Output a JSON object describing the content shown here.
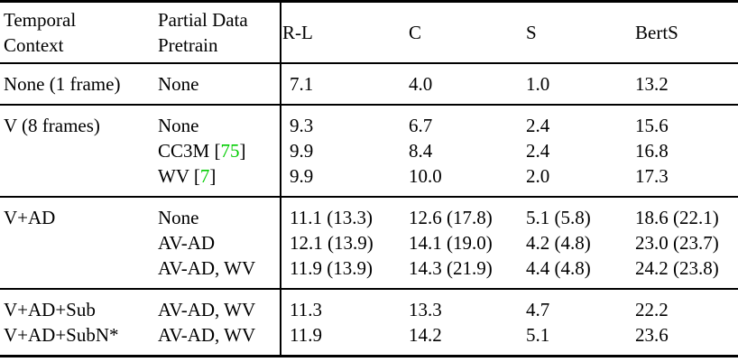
{
  "page": {
    "background": "#ffffff",
    "text_color": "#000000",
    "citation_color": "#00cc00"
  },
  "table": {
    "header": [
      {
        "lines": [
          "Temporal",
          "Context"
        ]
      },
      {
        "lines": [
          "Partial Data",
          "Pretrain"
        ]
      },
      {
        "lines": [
          "R-L"
        ]
      },
      {
        "lines": [
          "C"
        ]
      },
      {
        "lines": [
          "S"
        ]
      },
      {
        "lines": [
          "BertS"
        ]
      }
    ],
    "groups": [
      {
        "rows": [
          {
            "context": "None (1 frame)",
            "pretrain": {
              "text": "None",
              "cite": null
            },
            "values": [
              "7.1",
              "4.0",
              "1.0",
              "13.2"
            ]
          }
        ]
      },
      {
        "rows": [
          {
            "context": "V (8 frames)",
            "pretrain": {
              "text": "None",
              "cite": null
            },
            "values": [
              "9.3",
              "6.7",
              "2.4",
              "15.6"
            ]
          },
          {
            "context": "",
            "pretrain": {
              "text": "CC3M",
              "cite": "75"
            },
            "values": [
              "9.9",
              "8.4",
              "2.4",
              "16.8"
            ]
          },
          {
            "context": "",
            "pretrain": {
              "text": "WV",
              "cite": "7"
            },
            "values": [
              "9.9",
              "10.0",
              "2.0",
              "17.3"
            ]
          }
        ]
      },
      {
        "rows": [
          {
            "context": "V+AD",
            "pretrain": {
              "text": "None",
              "cite": null
            },
            "values": [
              "11.1 (13.3)",
              "12.6 (17.8)",
              "5.1 (5.8)",
              "18.6 (22.1)"
            ]
          },
          {
            "context": "",
            "pretrain": {
              "text": "AV-AD",
              "cite": null
            },
            "values": [
              "12.1 (13.9)",
              "14.1 (19.0)",
              "4.2 (4.8)",
              "23.0 (23.7)"
            ]
          },
          {
            "context": "",
            "pretrain": {
              "text": "AV-AD, WV",
              "cite": null
            },
            "values": [
              "11.9 (13.9)",
              "14.3 (21.9)",
              "4.4 (4.8)",
              "24.2 (23.8)"
            ]
          }
        ]
      },
      {
        "rows": [
          {
            "context": "V+AD+Sub",
            "pretrain": {
              "text": "AV-AD, WV",
              "cite": null
            },
            "values": [
              "11.3",
              "13.3",
              "4.7",
              "22.2"
            ]
          },
          {
            "context": "V+AD+SubN*",
            "pretrain": {
              "text": "AV-AD, WV",
              "cite": null
            },
            "values": [
              "11.9",
              "14.2",
              "5.1",
              "23.6"
            ]
          }
        ]
      }
    ]
  }
}
